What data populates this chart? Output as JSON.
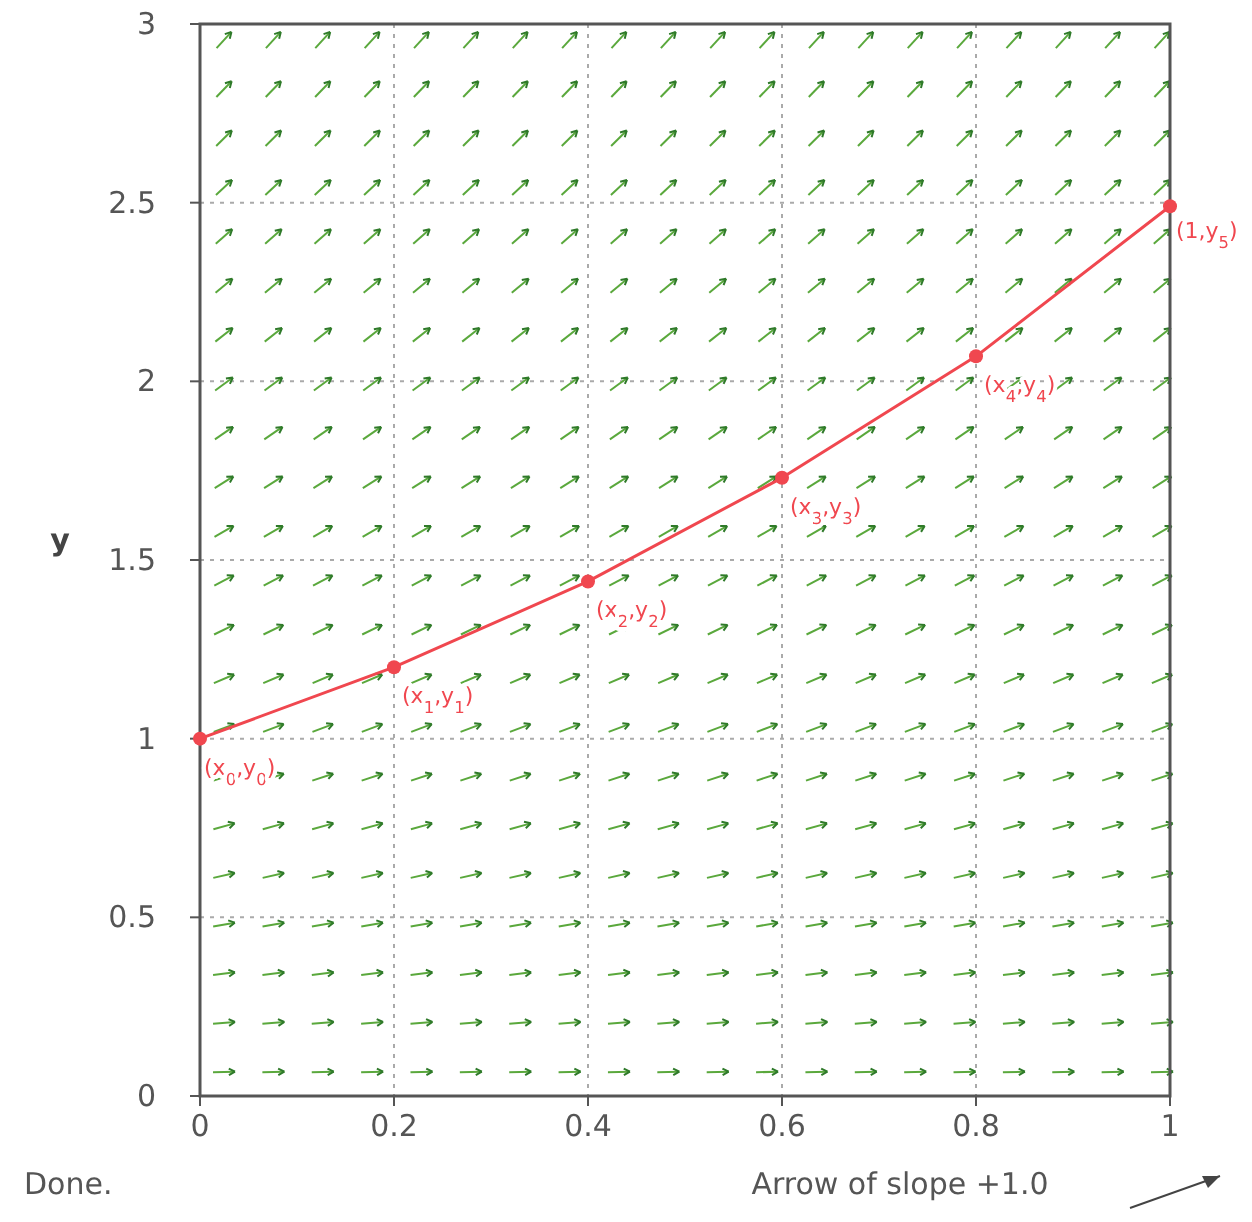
{
  "chart_data": {
    "type": "line",
    "ylabel": "y",
    "x": [
      0,
      0.2,
      0.4,
      0.6,
      0.8,
      1
    ],
    "series": [
      {
        "color": "#f0474f",
        "values": [
          1,
          1.2,
          1.44,
          1.73,
          2.07,
          2.49
        ]
      }
    ],
    "xlim": [
      0,
      1
    ],
    "xticks": [
      0,
      0.2,
      0.4,
      0.6,
      0.8,
      1
    ],
    "ylim": [
      0,
      3
    ],
    "yticks": [
      0,
      0.5,
      1,
      1.5,
      2,
      2.5,
      3
    ],
    "grid": true,
    "marker": "circle",
    "line_style": "solid",
    "annotations": [
      {
        "text": "(x$_{0}$,y$_{0}$)",
        "x": 0,
        "y": 1
      },
      {
        "text": "(x$_{1}$,y$_{1}$)",
        "x": 0.2,
        "y": 1.2
      },
      {
        "text": "(x$_{2}$,y$_{2}$)",
        "x": 0.4,
        "y": 1.44
      },
      {
        "text": "(x$_{3}$,y$_{3}$)",
        "x": 0.6,
        "y": 1.73
      },
      {
        "text": "(x$_{4}$,y$_{4}$)",
        "x": 0.8,
        "y": 2.07
      },
      {
        "text": "(1,y$_{5}$)",
        "x": 1,
        "y": 2.49
      },
      "Done.",
      "Arrow of slope +1.0"
    ]
  }
}
